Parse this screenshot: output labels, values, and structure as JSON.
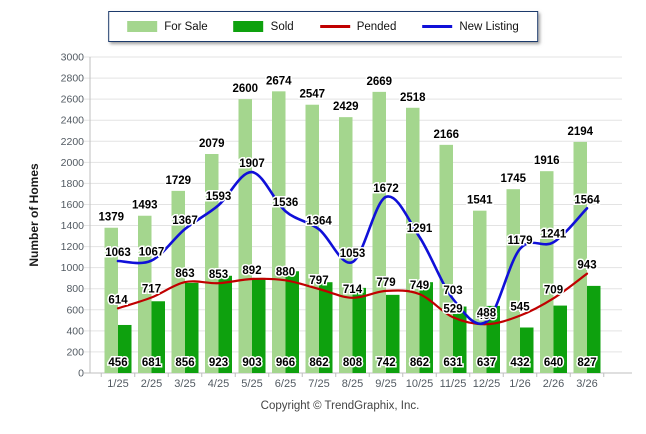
{
  "y_axis_title": "Number of Homes",
  "copyright": "Copyright © TrendGraphix, Inc.",
  "colors": {
    "for_sale": "#A4D68E",
    "sold": "#0EA10E",
    "pended": "#C00000",
    "new_listing": "#1010D8",
    "grid": "#E3E3E3",
    "axis": "#BFBFBF",
    "tick_label": "#525A62",
    "data_label": "#000000",
    "legend_border": "#1C3A6B"
  },
  "chart_data": {
    "type": "bar",
    "subtype": "grouped bars with smoothed overlay lines",
    "categories": [
      "1/25",
      "2/25",
      "3/25",
      "4/25",
      "5/25",
      "6/25",
      "7/25",
      "8/25",
      "9/25",
      "10/25",
      "11/25",
      "12/25",
      "1/26",
      "2/26",
      "3/26"
    ],
    "series": [
      {
        "name": "For Sale",
        "type": "bar",
        "color": "#A4D68E",
        "values": [
          1379,
          1493,
          1729,
          2079,
          2600,
          2674,
          2547,
          2429,
          2669,
          2518,
          2166,
          1541,
          1745,
          1916,
          2194
        ]
      },
      {
        "name": "Sold",
        "type": "bar",
        "color": "#0EA10E",
        "values": [
          456,
          681,
          856,
          923,
          903,
          966,
          862,
          808,
          742,
          862,
          631,
          637,
          432,
          640,
          827
        ]
      },
      {
        "name": "Pended",
        "type": "line",
        "color": "#C00000",
        "values": [
          614,
          717,
          863,
          853,
          892,
          880,
          797,
          714,
          779,
          749,
          529,
          463,
          545,
          709,
          943
        ]
      },
      {
        "name": "New Listing",
        "type": "line",
        "color": "#1010D8",
        "values": [
          1063,
          1067,
          1367,
          1593,
          1907,
          1536,
          1364,
          1053,
          1672,
          1291,
          703,
          488,
          1179,
          1241,
          1564
        ]
      }
    ],
    "title": "",
    "xlabel": "",
    "ylabel": "Number of Homes",
    "ylim": [
      0,
      3000
    ],
    "ytick_step": 200,
    "grid": true,
    "legend_position": "top-center"
  }
}
